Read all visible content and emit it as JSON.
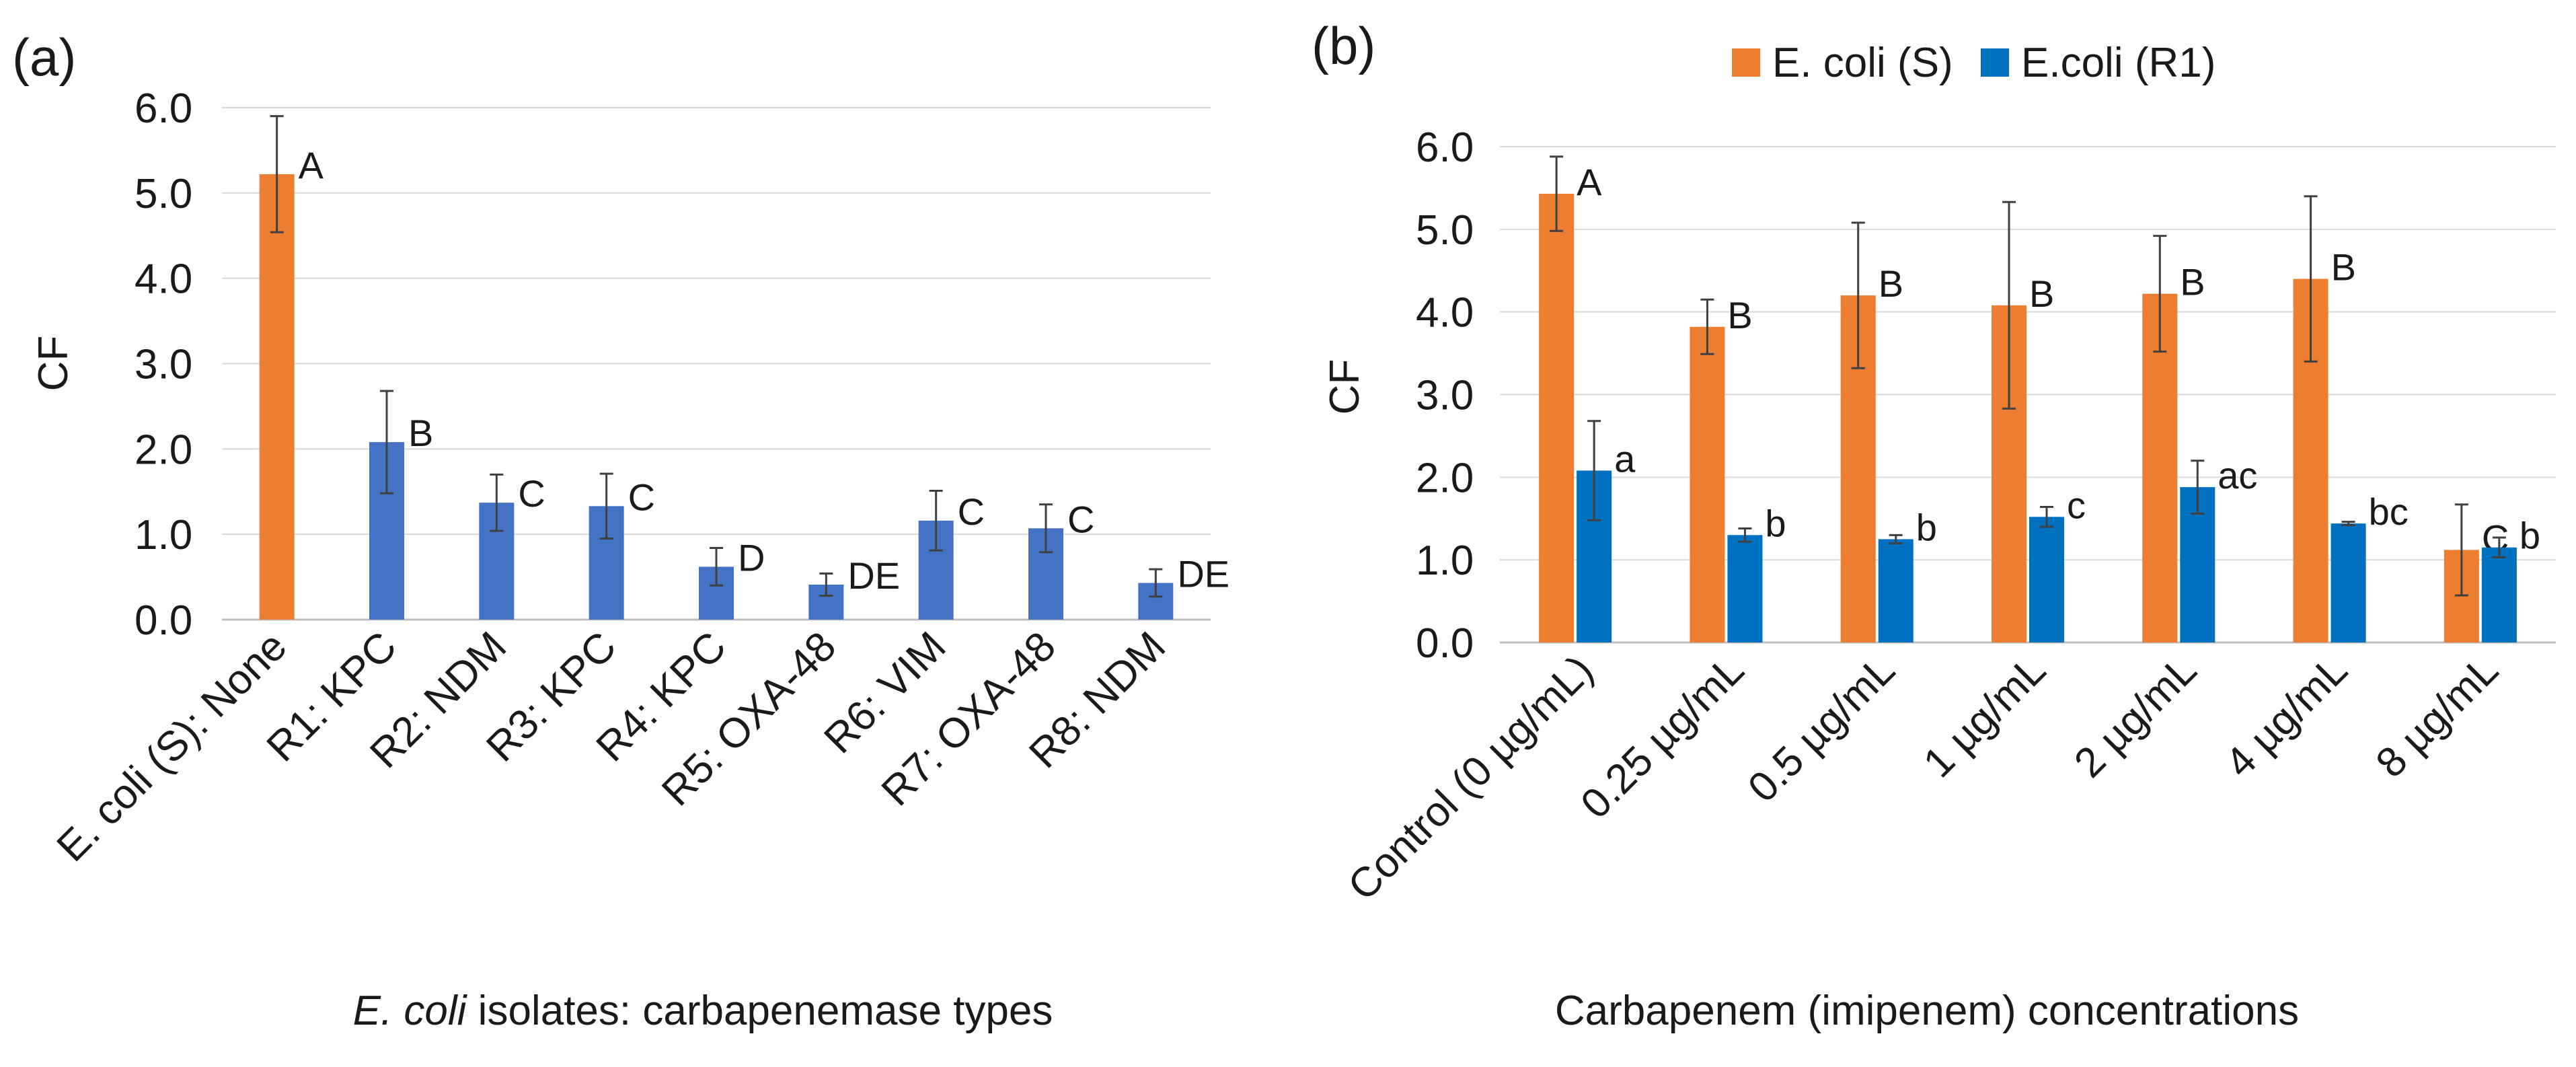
{
  "chart_data": [
    {
      "type": "bar",
      "panel_label": "(a)",
      "categories": [
        "E. coli (S): None",
        "R1: KPC",
        "R2: NDM",
        "R3: KPC",
        "R4: KPC",
        "R5: OXA-48",
        "R6: VIM",
        "R7: OXA-48",
        "R8: NDM"
      ],
      "values": [
        5.22,
        2.08,
        1.37,
        1.33,
        0.62,
        0.41,
        1.16,
        1.07,
        0.43
      ],
      "errors": [
        0.68,
        0.6,
        0.33,
        0.38,
        0.22,
        0.13,
        0.35,
        0.28,
        0.16
      ],
      "labels": [
        "A",
        "B",
        "C",
        "C",
        "D",
        "DE",
        "C",
        "C",
        "DE"
      ],
      "colors": [
        "#ED7D31",
        "#4472C4",
        "#4472C4",
        "#4472C4",
        "#4472C4",
        "#4472C4",
        "#4472C4",
        "#4472C4",
        "#4472C4"
      ],
      "ylabel": "CF",
      "xlabel_italic": "E. coli",
      "xlabel_rest": " isolates: carbapenemase types",
      "ylim": [
        0,
        6
      ],
      "yticks": [
        "0.0",
        "1.0",
        "2.0",
        "3.0",
        "4.0",
        "5.0",
        "6.0"
      ],
      "grid": true
    },
    {
      "type": "bar",
      "panel_label": "(b)",
      "categories": [
        "Control (0 µg/mL)",
        "0.25 µg/mL",
        "0.5 µg/mL",
        "1 µg/mL",
        "2 µg/mL",
        "4 µg/mL",
        "8 µg/mL"
      ],
      "series": [
        {
          "name": "E. coli (S)",
          "color": "#ED7D31",
          "values": [
            5.43,
            3.82,
            4.2,
            4.08,
            4.22,
            4.4,
            1.12
          ],
          "errors": [
            0.45,
            0.33,
            0.88,
            1.25,
            0.7,
            1.0,
            0.55
          ],
          "labels": [
            "A",
            "B",
            "B",
            "B",
            "B",
            "B",
            "C"
          ]
        },
        {
          "name": "E.coli (R1)",
          "color": "#0070C0",
          "values": [
            2.08,
            1.3,
            1.25,
            1.52,
            1.88,
            1.44,
            1.15
          ],
          "errors": [
            0.6,
            0.08,
            0.05,
            0.12,
            0.32,
            0.02,
            0.12
          ],
          "labels": [
            "a",
            "b",
            "b",
            "c",
            "ac",
            "bc",
            "b"
          ]
        }
      ],
      "ylabel": "CF",
      "xlabel": "Carbapenem (imipenem) concentrations",
      "ylim": [
        0,
        6
      ],
      "yticks": [
        "0.0",
        "1.0",
        "2.0",
        "3.0",
        "4.0",
        "5.0",
        "6.0"
      ],
      "grid": true,
      "legend_position": "top"
    }
  ]
}
